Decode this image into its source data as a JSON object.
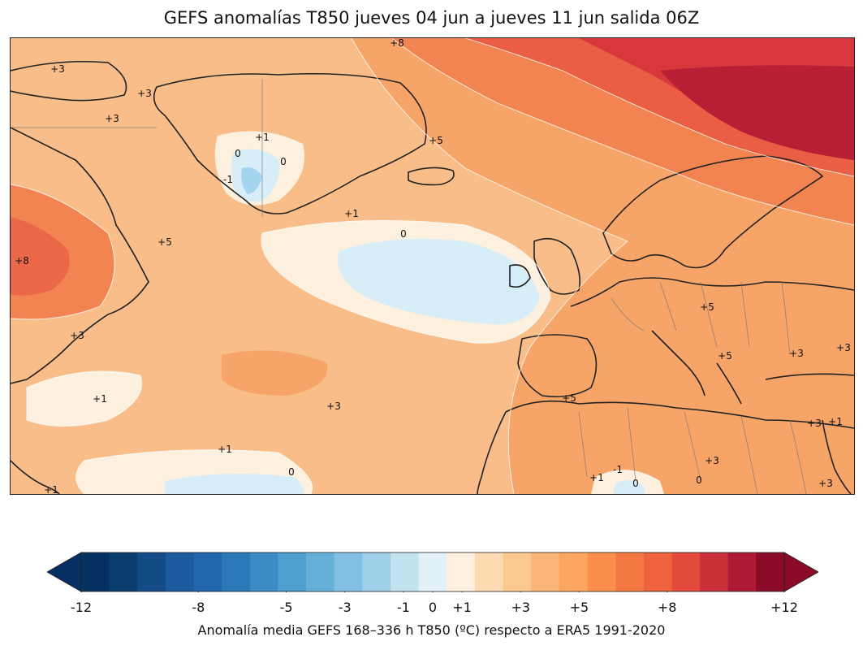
{
  "title": "GEFS anomalías T850 jueves 04 jun a jueves 11 jun salida 06Z",
  "map": {
    "contour_labels": [
      "+8",
      "+3",
      "+3",
      "+3",
      "+1",
      "0",
      "0",
      "-1",
      "+5",
      "+1",
      "0",
      "+5",
      "+8",
      "+3",
      "+5",
      "+5",
      "+3",
      "+3",
      "+1",
      "+3",
      "+1",
      "0",
      "+5",
      "+3",
      "+1",
      "+1",
      "-1",
      "0",
      "0",
      "+3",
      "+3",
      "+1"
    ]
  },
  "colorbar": {
    "colors": [
      "#053061",
      "#0b3c6e",
      "#134b87",
      "#1b5a9c",
      "#2166ac",
      "#2a78b8",
      "#3a8cc4",
      "#4d9fd0",
      "#65b0da",
      "#82c0e3",
      "#9fd0ea",
      "#c3e2f0",
      "#e2f1f8",
      "#fdf0de",
      "#fddbb2",
      "#fcc98f",
      "#fcb778",
      "#fca65f",
      "#f98f4b",
      "#f47a42",
      "#ee633d",
      "#e24a3c",
      "#c93038",
      "#ac1b33",
      "#8a0a28"
    ],
    "tick_labels": [
      "-12",
      "-8",
      "-5",
      "-3",
      "-1",
      "0",
      "+1",
      "+3",
      "+5",
      "+8",
      "+12"
    ],
    "tick_values": [
      -12,
      -8,
      -5,
      -3,
      -1,
      0,
      1,
      3,
      5,
      8,
      12
    ],
    "caption": "Anomalía media GEFS 168–336 h T850 (ºC) respecto a ERA5 1991-2020"
  }
}
